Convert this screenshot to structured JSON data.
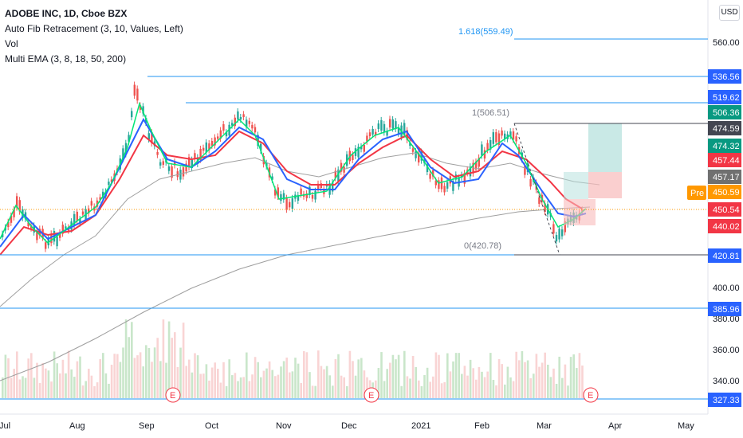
{
  "legend": {
    "title": "ADOBE INC, 1D, Cboe BZX",
    "fib": "Auto Fib Retracement (3, 10, Values, Left)",
    "vol": "Vol",
    "ema": "Multi EMA (3, 8, 18, 50, 200)"
  },
  "currency": "USD",
  "price_scale": {
    "ticks": [
      "560.00",
      "400.00",
      "380.00",
      "360.00",
      "340.00"
    ],
    "labels": [
      {
        "text": "536.56",
        "color": "#2962ff"
      },
      {
        "text": "519.62",
        "color": "#2962ff"
      },
      {
        "text": "506.36",
        "color": "#089981"
      },
      {
        "text": "474.59",
        "color": "#434651"
      },
      {
        "text": "474.32",
        "color": "#089981"
      },
      {
        "text": "457.44",
        "color": "#f23645"
      },
      {
        "text": "457.17",
        "color": "#707070"
      },
      {
        "text": "450.59",
        "color": "#ff9800"
      },
      {
        "text": "450.54",
        "color": "#f23645"
      },
      {
        "text": "440.02",
        "color": "#f23645"
      },
      {
        "text": "420.81",
        "color": "#2962ff"
      },
      {
        "text": "385.96",
        "color": "#2962ff"
      },
      {
        "text": "327.33",
        "color": "#2962ff"
      }
    ],
    "pre_label": "Pre"
  },
  "time_scale": [
    "Jul",
    "Aug",
    "Sep",
    "Oct",
    "Nov",
    "Dec",
    "2021",
    "Feb",
    "Mar",
    "Apr",
    "May"
  ],
  "fib_levels": [
    {
      "label": "1.618(559.49)",
      "color": "#2196f3"
    },
    {
      "label": "1(506.51)",
      "color": "#787b86"
    },
    {
      "label": "0(420.78)",
      "color": "#787b86"
    }
  ],
  "earnings_marker": "E",
  "colors": {
    "up": "#26a69a",
    "down": "#ef5350",
    "ema3": "#00e676",
    "ema8": "#2962ff",
    "ema18": "#f23645",
    "hline": "#2196f3"
  }
}
